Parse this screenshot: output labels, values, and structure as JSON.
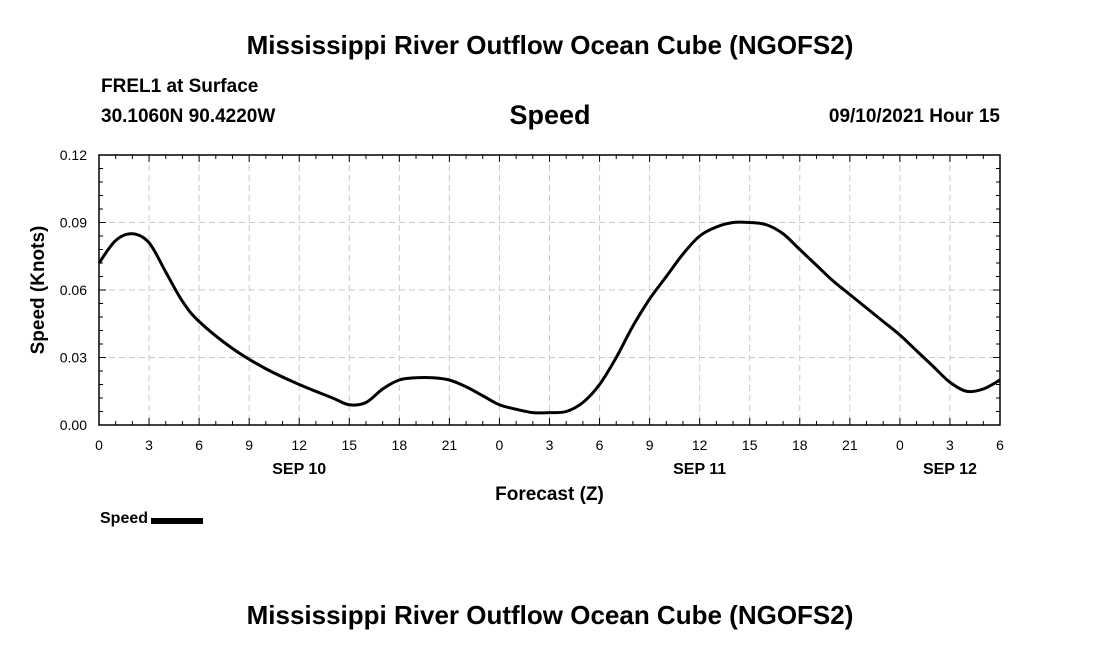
{
  "header": {
    "title": "Mississippi River Outflow Ocean Cube (NGOFS2)",
    "station": "FREL1 at Surface",
    "coords": "30.1060N  90.4220W",
    "variable": "Speed",
    "run_time": "09/10/2021 Hour 15"
  },
  "footer": {
    "title": "Mississippi River Outflow Ocean Cube (NGOFS2)"
  },
  "legend": {
    "label": "Speed"
  },
  "chart_data": {
    "type": "line",
    "title": "Speed",
    "xlabel": "Forecast (Z)",
    "ylabel": "Speed (Knots)",
    "ylim": [
      0,
      0.12
    ],
    "xlim": [
      0,
      54
    ],
    "x_units": "hours since 2021-09-10 00Z",
    "grid": true,
    "legend_position": "below-left",
    "line_color": "#000000",
    "y_ticks": [
      0,
      0.03,
      0.06,
      0.09,
      0.12
    ],
    "y_tick_labels": [
      "0.00",
      "0.03",
      "0.06",
      "0.09",
      "0.12"
    ],
    "x_ticks": [
      0,
      3,
      6,
      9,
      12,
      15,
      18,
      21,
      24,
      27,
      30,
      33,
      36,
      39,
      42,
      45,
      48,
      51,
      54
    ],
    "x_tick_labels": [
      "0",
      "3",
      "6",
      "9",
      "12",
      "15",
      "18",
      "21",
      "0",
      "3",
      "6",
      "9",
      "12",
      "15",
      "18",
      "21",
      "0",
      "3",
      "6"
    ],
    "date_labels": [
      {
        "x": 12,
        "label": "SEP 10"
      },
      {
        "x": 36,
        "label": "SEP 11"
      },
      {
        "x": 51,
        "label": "SEP 12"
      }
    ],
    "series": [
      {
        "name": "Speed",
        "x": [
          0,
          1,
          2,
          3,
          4,
          5,
          6,
          8,
          10,
          12,
          14,
          15,
          16,
          17,
          18,
          19,
          20,
          21,
          22,
          23,
          24,
          25,
          26,
          27,
          28,
          29,
          30,
          31,
          32,
          33,
          34,
          35,
          36,
          37,
          38,
          39,
          40,
          41,
          42,
          43,
          44,
          45,
          46,
          47,
          48,
          49,
          50,
          51,
          52,
          53,
          54
        ],
        "values": [
          0.072,
          0.082,
          0.085,
          0.081,
          0.068,
          0.055,
          0.046,
          0.034,
          0.025,
          0.018,
          0.012,
          0.009,
          0.01,
          0.016,
          0.02,
          0.021,
          0.021,
          0.02,
          0.017,
          0.013,
          0.009,
          0.007,
          0.0055,
          0.0055,
          0.006,
          0.01,
          0.018,
          0.03,
          0.044,
          0.056,
          0.066,
          0.076,
          0.084,
          0.088,
          0.09,
          0.09,
          0.089,
          0.085,
          0.078,
          0.071,
          0.064,
          0.058,
          0.052,
          0.046,
          0.04,
          0.033,
          0.026,
          0.019,
          0.015,
          0.016,
          0.02
        ]
      }
    ]
  }
}
